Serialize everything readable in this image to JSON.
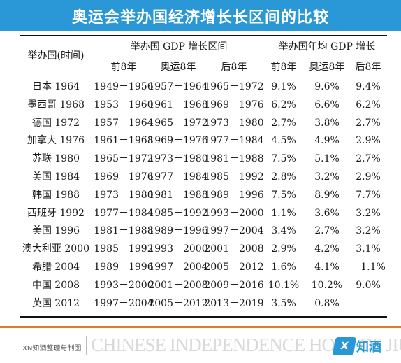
{
  "title": "奥运会举办国经济增长长区间的比较",
  "table": {
    "host_header": "举办国(时间)",
    "gdp_period_header": "举办国 GDP 增长区间",
    "gdp_growth_header": "举办国年均 GDP 增长",
    "sub_headers": [
      "前8年",
      "奥运8年",
      "后8年",
      "前8年",
      "奥运8年",
      "后8年"
    ],
    "rows": [
      {
        "host": "日本 1964",
        "pre": "1949－1956",
        "olympic": "1957－1964",
        "post": "1965－1972",
        "g_pre": "9.1%",
        "g_olympic": "9.6%",
        "g_post": "9.4%"
      },
      {
        "host": "墨西哥 1968",
        "pre": "1953－1960",
        "olympic": "1961－1968",
        "post": "1969－1976",
        "g_pre": "6.2%",
        "g_olympic": "6.6%",
        "g_post": "6.2%"
      },
      {
        "host": "德国 1972",
        "pre": "1957－1964",
        "olympic": "1965－1972",
        "post": "1973－1980",
        "g_pre": "2.7%",
        "g_olympic": "3.8%",
        "g_post": "2.7%"
      },
      {
        "host": "加拿大 1976",
        "pre": "1961－1968",
        "olympic": "1969－1976",
        "post": "1977－1984",
        "g_pre": "4.5%",
        "g_olympic": "4.9%",
        "g_post": "2.9%"
      },
      {
        "host": "苏联 1980",
        "pre": "1965－1972",
        "olympic": "1973－1980",
        "post": "1981－1988",
        "g_pre": "7.5%",
        "g_olympic": "5.1%",
        "g_post": "2.7%"
      },
      {
        "host": "美国 1984",
        "pre": "1969－1976",
        "olympic": "1977－1984",
        "post": "1985－1992",
        "g_pre": "2.8%",
        "g_olympic": "3.2%",
        "g_post": "2.9%"
      },
      {
        "host": "韩国 1988",
        "pre": "1973－1980",
        "olympic": "1981－1988",
        "post": "1989－1996",
        "g_pre": "7.5%",
        "g_olympic": "8.9%",
        "g_post": "7.7%"
      },
      {
        "host": "西班牙 1992",
        "pre": "1977－1984",
        "olympic": "1985－1992",
        "post": "1993－2000",
        "g_pre": "1.1%",
        "g_olympic": "3.6%",
        "g_post": "3.2%"
      },
      {
        "host": "美国 1996",
        "pre": "1981－1988",
        "olympic": "1989－1996",
        "post": "1997－2004",
        "g_pre": "3.4%",
        "g_olympic": "2.7%",
        "g_post": "3.2%"
      },
      {
        "host": "澳大利亚 2000",
        "pre": "1985－1992",
        "olympic": "1993－2000",
        "post": "2001－2008",
        "g_pre": "2.9%",
        "g_olympic": "4.2%",
        "g_post": "3.1%"
      },
      {
        "host": "希腊 2004",
        "pre": "1989－1996",
        "olympic": "1997－2004",
        "post": "2005－2012",
        "g_pre": "1.6%",
        "g_olympic": "4.1%",
        "g_post": "－1.1%"
      },
      {
        "host": "中国 2008",
        "pre": "1993－2000",
        "olympic": "2001－2008",
        "post": "2009－2016",
        "g_pre": "10.1%",
        "g_olympic": "10.2%",
        "g_post": "9.0%"
      },
      {
        "host": "英国 2012",
        "pre": "1997－2004",
        "olympic": "2005－2012",
        "post": "2013－2019",
        "g_pre": "3.5%",
        "g_olympic": "0.8%",
        "g_post": ""
      }
    ]
  },
  "footer": {
    "credit": "XN知酒整理与制图",
    "watermark": "CHINESE INDEPENDENCE HOST OF JIU",
    "logo_mark": "X",
    "logo_text": "知酒"
  },
  "colors": {
    "title_bar": "#2a97d6",
    "footer_rule": "#e07b2a",
    "logo": "#2a97d6"
  }
}
